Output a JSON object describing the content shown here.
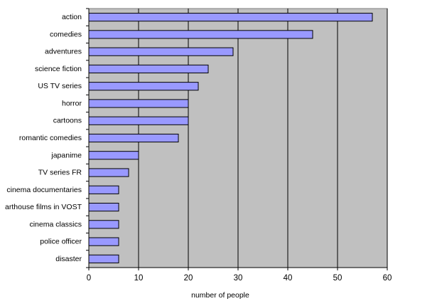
{
  "chart_data": {
    "type": "bar",
    "orientation": "horizontal",
    "categories": [
      "action",
      "comedies",
      "adventures",
      "science fiction",
      "US TV series",
      "horror",
      "cartoons",
      "romantic comedies",
      "japanime",
      "TV series FR",
      "cinema documentaries",
      "arthouse films in VOST",
      "cinema classics",
      "police officer",
      "disaster"
    ],
    "values": [
      57,
      45,
      29,
      24,
      22,
      20,
      20,
      18,
      10,
      8,
      6,
      6,
      6,
      6,
      6
    ],
    "xlabel": "number of people",
    "ylabel": "",
    "xlim": [
      0,
      60
    ],
    "xticks": [
      0,
      10,
      20,
      30,
      40,
      50,
      60
    ],
    "grid": "vertical major gridlines",
    "legend": "none",
    "colors": {
      "bar_fill": "#9999ff",
      "bar_stroke": "#000000",
      "plot_background": "#c0c0c0",
      "gridline": "#000000"
    }
  }
}
